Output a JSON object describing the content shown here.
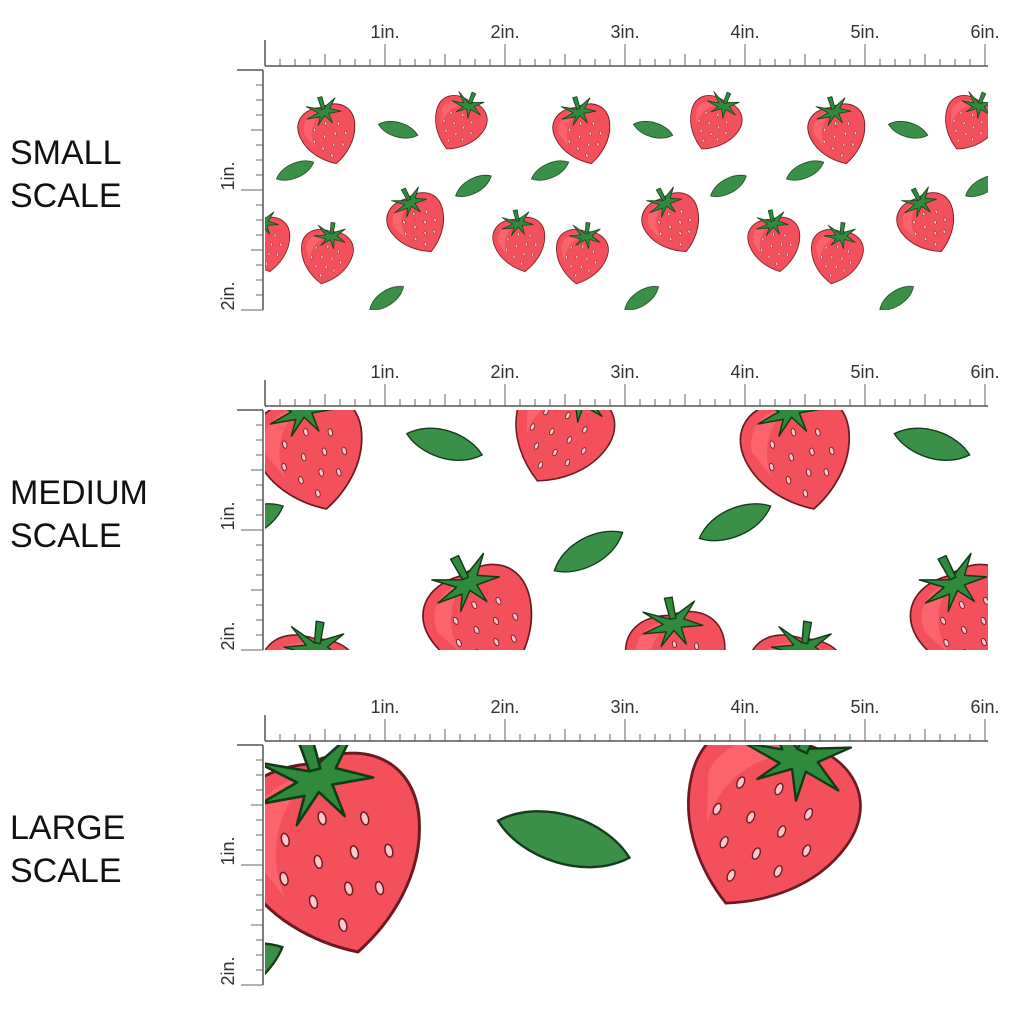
{
  "panels": [
    {
      "label": [
        "SMALL",
        "SCALE"
      ]
    },
    {
      "label": [
        "MEDIUM",
        "SCALE"
      ]
    },
    {
      "label": [
        "LARGE",
        "SCALE"
      ]
    }
  ],
  "ruler": {
    "x_labels": [
      "1in.",
      "2in.",
      "3in.",
      "4in.",
      "5in.",
      "6in."
    ],
    "y_labels": [
      "1in.",
      "2in."
    ]
  }
}
